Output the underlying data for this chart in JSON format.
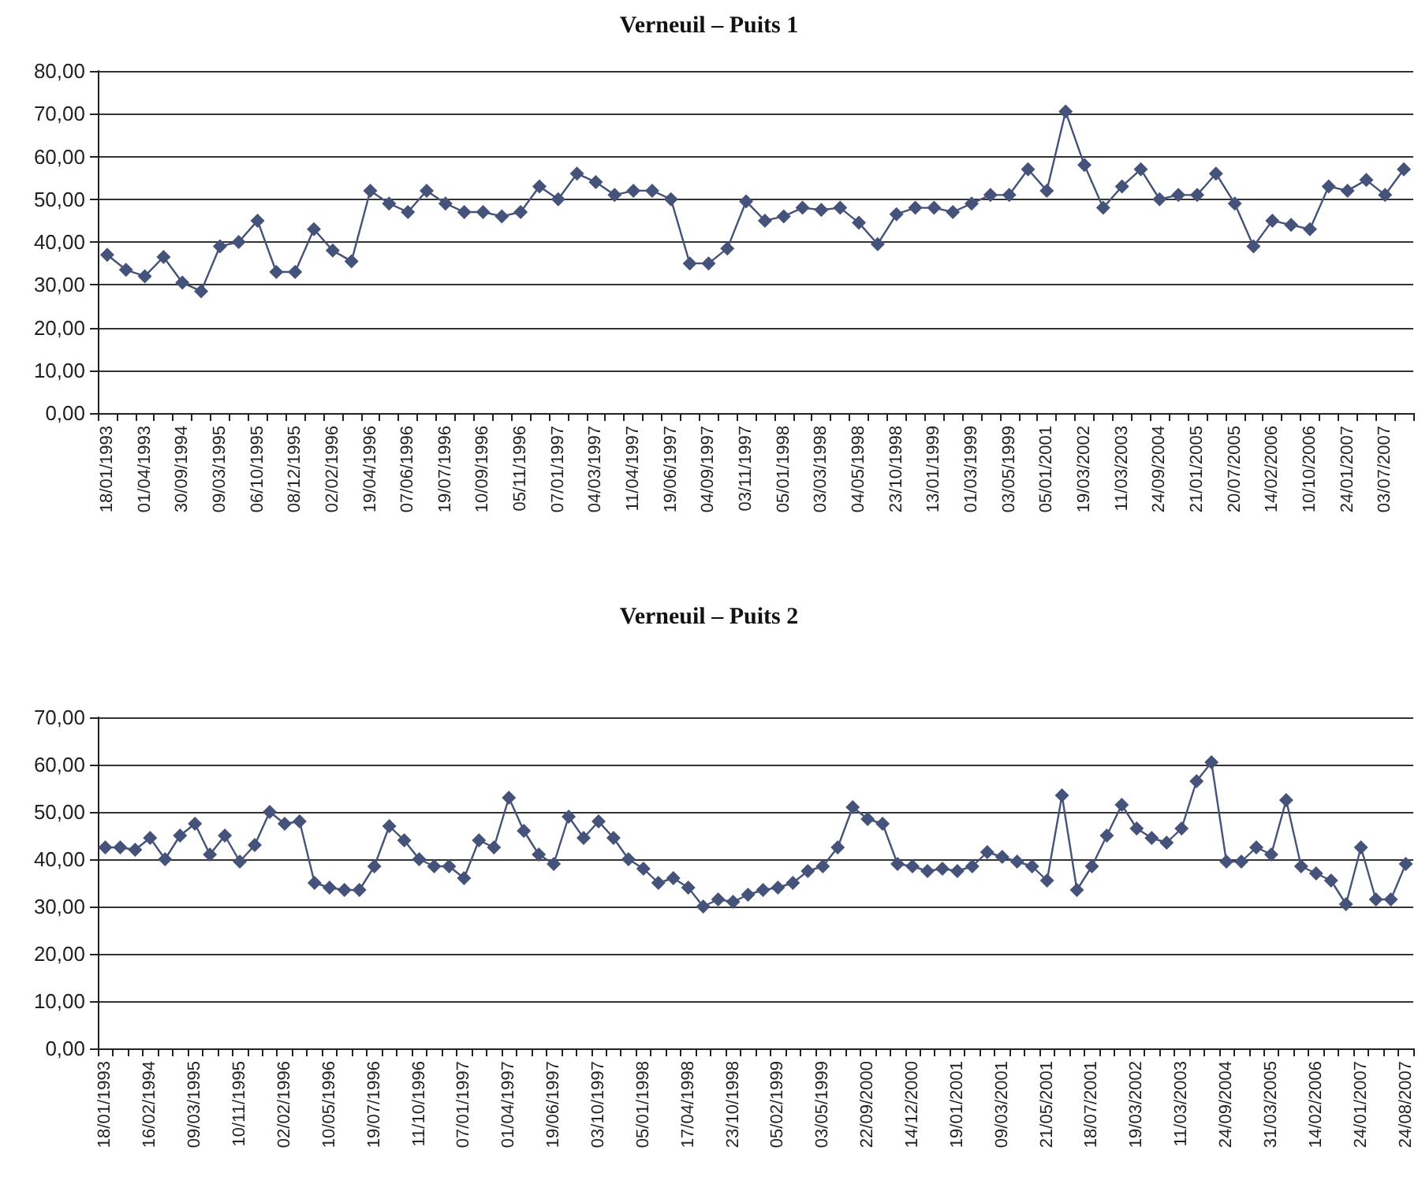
{
  "chart_data": [
    {
      "type": "line",
      "title": "Verneuil – Puits 1",
      "categories": [
        "18/01/1993",
        null,
        "01/04/1993",
        null,
        "30/09/1994",
        null,
        "09/03/1995",
        null,
        "06/10/1995",
        null,
        "08/12/1995",
        null,
        "02/02/1996",
        null,
        "19/04/1996",
        null,
        "07/06/1996",
        null,
        "19/07/1996",
        null,
        "10/09/1996",
        null,
        "05/11/1996",
        null,
        "07/01/1997",
        null,
        "04/03/1997",
        null,
        "11/04/1997",
        null,
        "19/06/1997",
        null,
        "04/09/1997",
        null,
        "03/11/1997",
        null,
        "05/01/1998",
        null,
        "03/03/1998",
        null,
        "04/05/1998",
        null,
        "23/10/1998",
        null,
        "13/01/1999",
        null,
        "01/03/1999",
        null,
        "03/05/1999",
        null,
        "05/01/2001",
        null,
        "19/03/2002",
        null,
        "11/03/2003",
        null,
        "24/09/2004",
        null,
        "21/01/2005",
        null,
        "20/07/2005",
        null,
        "14/02/2006",
        null,
        "10/10/2006",
        null,
        "24/01/2007",
        null,
        "03/07/2007",
        null
      ],
      "series": [
        {
          "color": "#45527a",
          "values": [
            37,
            33.5,
            32,
            36.5,
            30.5,
            28.5,
            39,
            40,
            45,
            33,
            33,
            43,
            38,
            35.5,
            52,
            49,
            47,
            52,
            49,
            47,
            47,
            46,
            47,
            53,
            50,
            56,
            54,
            51,
            52,
            52,
            50,
            35,
            35,
            38.5,
            49.5,
            45,
            46,
            48,
            47.5,
            48,
            44.5,
            39.5,
            46.5,
            48,
            48,
            47,
            49,
            51,
            51,
            57,
            52,
            70.5,
            58,
            48,
            53,
            57,
            50,
            51,
            51,
            56,
            49,
            39,
            45,
            44,
            43,
            53,
            52,
            54.5,
            51,
            57
          ]
        }
      ],
      "ylim": [
        0,
        80
      ],
      "yticks": [
        {
          "value": 0,
          "label": "0,00"
        },
        {
          "value": 10,
          "label": "10,00"
        },
        {
          "value": 20,
          "label": "20,00"
        },
        {
          "value": 30,
          "label": "30,00"
        },
        {
          "value": 40,
          "label": "40,00"
        },
        {
          "value": 50,
          "label": "50,00"
        },
        {
          "value": 60,
          "label": "60,00"
        },
        {
          "value": 70,
          "label": "70,00"
        },
        {
          "value": 80,
          "label": "80,00"
        }
      ],
      "grid": "y",
      "marker": "diamond",
      "line_style": "solid"
    },
    {
      "type": "line",
      "title": "Verneuil – Puits 2",
      "categories": [
        "18/01/1993",
        null,
        null,
        "16/02/1994",
        null,
        null,
        "09/03/1995",
        null,
        null,
        "10/11/1995",
        null,
        null,
        "02/02/1996",
        null,
        null,
        "10/05/1996",
        null,
        null,
        "19/07/1996",
        null,
        null,
        "11/10/1996",
        null,
        null,
        "07/01/1997",
        null,
        null,
        "01/04/1997",
        null,
        null,
        "19/06/1997",
        null,
        null,
        "03/10/1997",
        null,
        null,
        "05/01/1998",
        null,
        null,
        "17/04/1998",
        null,
        null,
        "23/10/1998",
        null,
        null,
        "05/02/1999",
        null,
        null,
        "03/05/1999",
        null,
        null,
        "22/09/2000",
        null,
        null,
        "14/12/2000",
        null,
        null,
        "19/01/2001",
        null,
        null,
        "09/03/2001",
        null,
        null,
        "21/05/2001",
        null,
        null,
        "18/07/2001",
        null,
        null,
        "19/03/2002",
        null,
        null,
        "11/03/2003",
        null,
        null,
        "24/09/2004",
        null,
        null,
        "31/03/2005",
        null,
        null,
        "14/02/2006",
        null,
        null,
        "24/01/2007",
        null,
        null,
        "24/08/2007"
      ],
      "series": [
        {
          "color": "#45527a",
          "values": [
            42.5,
            42.5,
            42,
            44.5,
            40,
            45,
            47.5,
            41,
            45,
            39.5,
            43,
            50,
            47.5,
            48,
            35,
            34,
            33.5,
            33.5,
            38.5,
            47,
            44,
            40,
            38.5,
            38.5,
            36,
            44,
            42.5,
            53,
            46,
            41,
            39,
            49,
            44.5,
            48,
            44.5,
            40,
            38,
            35,
            36,
            34,
            30,
            31.5,
            31,
            32.5,
            33.5,
            34,
            35,
            37.5,
            38.5,
            42.5,
            51,
            48.5,
            47.5,
            39,
            38.5,
            37.5,
            38,
            37.5,
            38.5,
            41.5,
            40.5,
            39.5,
            38.5,
            35.5,
            53.5,
            33.5,
            38.5,
            45,
            51.5,
            46.5,
            44.5,
            43.5,
            46.5,
            56.5,
            60.5,
            39.5,
            39.5,
            42.5,
            41,
            52.5,
            38.5,
            37,
            35.5,
            30.5,
            42.5,
            31.5,
            31.5,
            39
          ]
        }
      ],
      "ylim": [
        0,
        70
      ],
      "yticks": [
        {
          "value": 0,
          "label": "0,00"
        },
        {
          "value": 10,
          "label": "10,00"
        },
        {
          "value": 20,
          "label": "20,00"
        },
        {
          "value": 30,
          "label": "30,00"
        },
        {
          "value": 40,
          "label": "40,00"
        },
        {
          "value": 50,
          "label": "50,00"
        },
        {
          "value": 60,
          "label": "60,00"
        },
        {
          "value": 70,
          "label": "70,00"
        }
      ],
      "grid": "y",
      "marker": "diamond",
      "line_style": "solid"
    }
  ]
}
